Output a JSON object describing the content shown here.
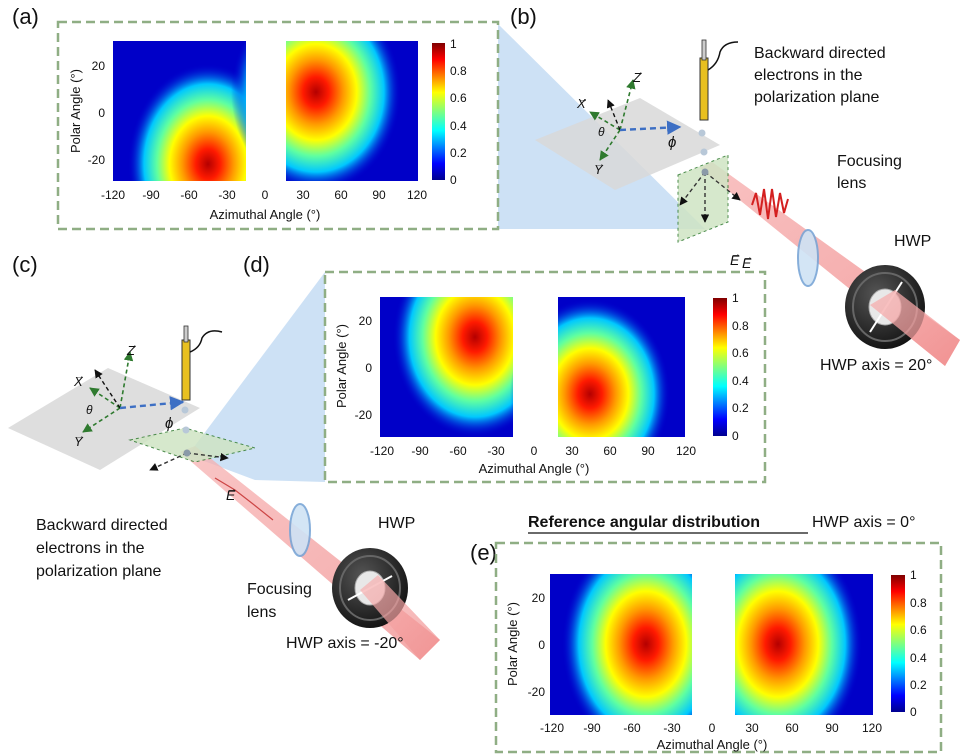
{
  "panels": {
    "a": {
      "letter": "(a)"
    },
    "b": {
      "letter": "(b)"
    },
    "c": {
      "letter": "(c)"
    },
    "d": {
      "letter": "(d)"
    },
    "e": {
      "letter": "(e)"
    }
  },
  "heatmaps": {
    "a": {
      "azimuth_axis_label": "Azimuthal Angle (°)",
      "polar_axis_label": "Polar Angle (°)"
    },
    "d": {
      "azimuth_axis_label": "Azimuthal Angle (°)",
      "polar_axis_label": "Polar Angle (°)"
    },
    "e": {
      "azimuth_axis_label": "Azimuthal Angle (°)",
      "polar_axis_label": "Polar Angle (°)"
    }
  },
  "chart_data": [
    {
      "type": "heatmap",
      "panel": "a",
      "xlabel": "Azimuthal Angle (°)",
      "ylabel": "Polar Angle (°)",
      "xlim": [
        -120,
        120
      ],
      "ylim": [
        -30,
        30
      ],
      "x_ticks": [
        "-120",
        "-90",
        "-60",
        "-30",
        "0",
        "30",
        "60",
        "90",
        "120"
      ],
      "y_ticks": [
        "20",
        "0",
        "-20"
      ],
      "colorbar_ticks": [
        "1",
        "0.8",
        "0.6",
        "0.4",
        "0.2",
        "0"
      ],
      "colorbar_range": [
        0,
        1
      ],
      "blank_gap_azimuth": [
        -15,
        15
      ],
      "lobes": [
        {
          "center_azimuth": -45,
          "center_polar": -12,
          "peak": 1.0
        },
        {
          "center_azimuth": 40,
          "center_polar": 15,
          "peak": 1.0
        }
      ]
    },
    {
      "type": "heatmap",
      "panel": "d",
      "xlabel": "Azimuthal Angle (°)",
      "ylabel": "Polar Angle (°)",
      "xlim": [
        -120,
        120
      ],
      "ylim": [
        -30,
        30
      ],
      "x_ticks": [
        "-120",
        "-90",
        "-60",
        "-30",
        "0",
        "30",
        "60",
        "90",
        "120"
      ],
      "y_ticks": [
        "20",
        "0",
        "-20"
      ],
      "colorbar_ticks": [
        "1",
        "0.8",
        "0.6",
        "0.4",
        "0.2",
        "0"
      ],
      "colorbar_range": [
        0,
        1
      ],
      "blank_gap_azimuth": [
        -15,
        15
      ],
      "lobes": [
        {
          "center_azimuth": -45,
          "center_polar": 13,
          "peak": 1.0
        },
        {
          "center_azimuth": 45,
          "center_polar": -12,
          "peak": 1.0
        }
      ]
    },
    {
      "type": "heatmap",
      "panel": "e",
      "title": "Reference angular distribution",
      "xlabel": "Azimuthal Angle (°)",
      "ylabel": "Polar Angle (°)",
      "xlim": [
        -120,
        120
      ],
      "ylim": [
        -30,
        30
      ],
      "x_ticks": [
        "-120",
        "-90",
        "-60",
        "-30",
        "0",
        "30",
        "60",
        "90",
        "120"
      ],
      "y_ticks": [
        "20",
        "0",
        "-20"
      ],
      "colorbar_ticks": [
        "1",
        "0.8",
        "0.6",
        "0.4",
        "0.2",
        "0"
      ],
      "colorbar_range": [
        0,
        1
      ],
      "blank_gap_azimuth": [
        -15,
        15
      ],
      "lobes": [
        {
          "center_azimuth": -48,
          "center_polar": 0,
          "peak": 1.0
        },
        {
          "center_azimuth": 48,
          "center_polar": 0,
          "peak": 1.0
        }
      ]
    }
  ],
  "setup_b": {
    "backward_line1": "Backward directed",
    "backward_line2": "electrons in the",
    "backward_line3": "polarization plane",
    "lens_line1": "Focusing",
    "lens_line2": "lens",
    "hwp_label": "HWP",
    "hwp_axis": "HWP axis = 20°"
  },
  "setup_c": {
    "backward_line1": "Backward directed",
    "backward_line2": "electrons in the",
    "backward_line3": "polarization plane",
    "lens_line1": "Focusing",
    "lens_line2": "lens",
    "hwp_label": "HWP",
    "hwp_axis": "HWP axis = -20°"
  },
  "reference": {
    "title": "Reference angular distribution",
    "hwp_axis": "HWP axis = 0°"
  },
  "symbols": {
    "x_axis": "X",
    "y_axis": "Y",
    "z_axis": "Z",
    "theta": "θ",
    "phi": "ϕ",
    "field": "E",
    "vector_arrow": "→"
  },
  "colors": {
    "frame_dash": "#8fae84",
    "projection_fill": "#bcd7f2",
    "plane_fill": "#d8d8d8",
    "polarization_plane_fill": "#cfe4c4",
    "beam_fill": "#f4a3a3",
    "pulse": "#d42020",
    "axis_green": "#2f7a2f",
    "axis_black": "#111111",
    "phi_arrow": "#3d6fc4",
    "field_label": "#c0392b"
  }
}
